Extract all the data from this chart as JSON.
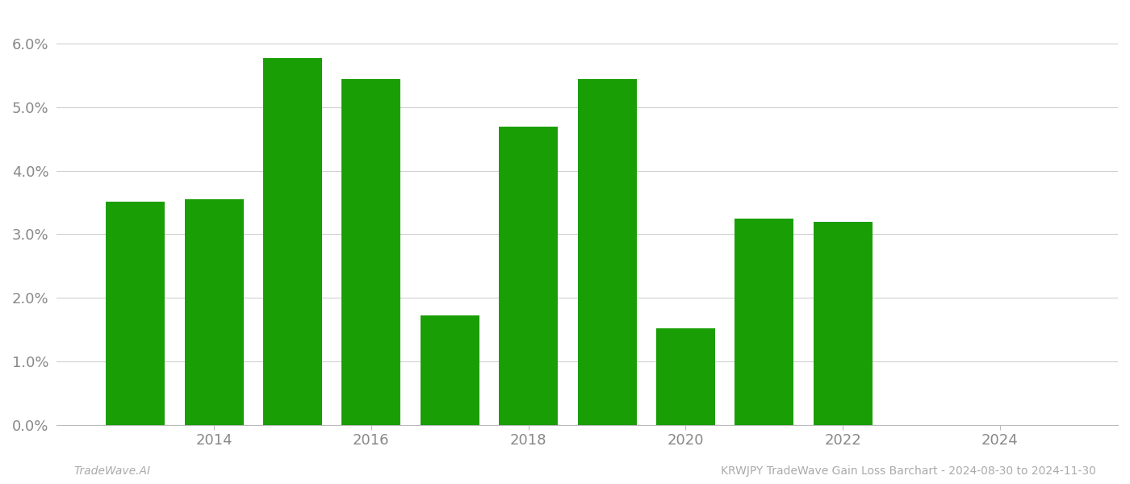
{
  "years": [
    2013,
    2014,
    2015,
    2016,
    2017,
    2018,
    2019,
    2020,
    2021,
    2022,
    2023
  ],
  "values": [
    0.0352,
    0.0355,
    0.0578,
    0.0545,
    0.0172,
    0.047,
    0.0545,
    0.0152,
    0.0325,
    0.032,
    0.0
  ],
  "bar_color": "#1a9e06",
  "background_color": "#ffffff",
  "grid_color": "#d0d0d0",
  "ylim": [
    0.0,
    0.065
  ],
  "yticks": [
    0.0,
    0.01,
    0.02,
    0.03,
    0.04,
    0.05,
    0.06
  ],
  "xlim_left": 2012.0,
  "xlim_right": 2025.5,
  "xticks": [
    2014,
    2016,
    2018,
    2020,
    2022,
    2024
  ],
  "footer_left": "TradeWave.AI",
  "footer_right": "KRWJPY TradeWave Gain Loss Barchart - 2024-08-30 to 2024-11-30",
  "footer_color": "#aaaaaa",
  "bar_width": 0.75,
  "tick_label_color": "#888888",
  "tick_label_fontsize": 13
}
